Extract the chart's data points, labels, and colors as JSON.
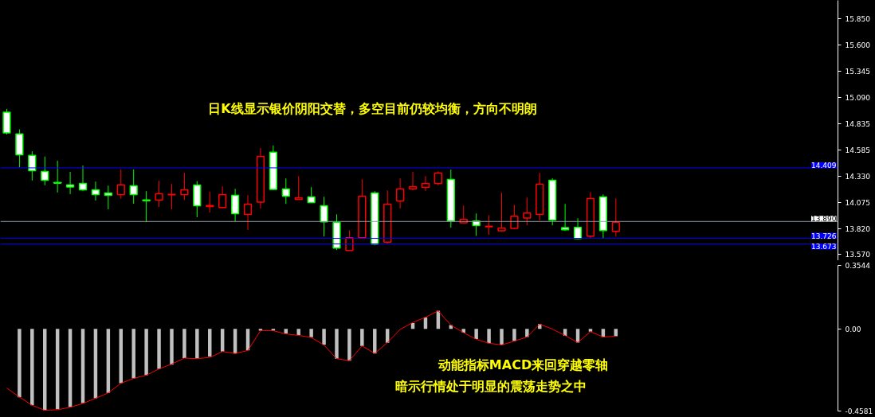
{
  "chart_data": [
    {
      "type": "candlestick",
      "categories": [
        null,
        null,
        null,
        null,
        null,
        null,
        null,
        null,
        null,
        null,
        null,
        null,
        null,
        null,
        null,
        null,
        null,
        null,
        null,
        null,
        null,
        null,
        null,
        null,
        null,
        null,
        null,
        null,
        null,
        null,
        null,
        null,
        null,
        null,
        null,
        null,
        null,
        null,
        null,
        null,
        null,
        null,
        null,
        null,
        null,
        null,
        null,
        null,
        null,
        null,
        null,
        null,
        null,
        null,
        null,
        null,
        null,
        null,
        null,
        null,
        null,
        null,
        null,
        null,
        null,
        null
      ],
      "ohlc": [
        [
          14.948,
          14.979,
          14.732,
          14.747
        ],
        [
          14.737,
          14.781,
          14.415,
          14.536
        ],
        [
          14.529,
          14.57,
          14.286,
          14.382
        ],
        [
          14.374,
          14.518,
          14.24,
          14.289
        ],
        [
          14.268,
          14.479,
          14.17,
          14.26
        ],
        [
          14.245,
          14.369,
          14.155,
          14.224
        ],
        [
          14.258,
          14.431,
          14.183,
          14.196
        ],
        [
          14.196,
          14.276,
          14.093,
          14.15
        ],
        [
          14.166,
          14.237,
          14.008,
          14.142
        ],
        [
          14.15,
          14.394,
          14.111,
          14.245
        ],
        [
          14.235,
          14.394,
          14.062,
          14.15
        ],
        [
          14.098,
          14.183,
          13.884,
          14.091
        ],
        [
          14.096,
          14.284,
          14.031,
          14.158
        ],
        [
          14.148,
          14.253,
          14.008,
          14.152
        ],
        [
          14.15,
          14.361,
          14.098,
          14.196
        ],
        [
          14.243,
          14.281,
          13.931,
          14.042
        ],
        [
          14.034,
          14.176,
          13.977,
          14.044
        ],
        [
          14.026,
          14.23,
          14.02,
          14.15
        ],
        [
          14.142,
          14.206,
          13.892,
          13.965
        ],
        [
          13.957,
          14.145,
          13.807,
          14.057
        ],
        [
          14.077,
          14.601,
          14.016,
          14.521
        ],
        [
          14.56,
          14.626,
          14.193,
          14.201
        ],
        [
          14.204,
          14.307,
          14.06,
          14.135
        ],
        [
          14.104,
          14.33,
          14.1,
          14.119
        ],
        [
          14.127,
          14.222,
          14.073,
          14.073
        ],
        [
          14.042,
          14.129,
          13.745,
          13.887
        ],
        [
          13.88,
          13.959,
          13.614,
          13.632
        ],
        [
          13.609,
          13.805,
          13.609,
          13.733
        ],
        [
          13.733,
          14.299,
          13.733,
          14.135
        ],
        [
          14.166,
          14.183,
          13.66,
          13.671
        ],
        [
          13.691,
          14.191,
          13.676,
          14.057
        ],
        [
          14.088,
          14.307,
          14.016,
          14.204
        ],
        [
          14.204,
          14.369,
          14.193,
          14.227
        ],
        [
          14.22,
          14.33,
          14.186,
          14.258
        ],
        [
          14.258,
          14.376,
          14.24,
          14.359
        ],
        [
          14.297,
          14.392,
          13.83,
          13.895
        ],
        [
          13.877,
          14.044,
          13.877,
          13.91
        ],
        [
          13.895,
          13.967,
          13.751,
          13.849
        ],
        [
          13.838,
          13.951,
          13.761,
          13.844
        ],
        [
          13.799,
          14.168,
          13.791,
          13.826
        ],
        [
          13.823,
          14.052,
          13.815,
          13.941
        ],
        [
          13.923,
          14.121,
          13.853,
          13.972
        ],
        [
          13.957,
          14.361,
          13.9,
          14.25
        ],
        [
          14.289,
          14.307,
          13.853,
          13.903
        ],
        [
          13.83,
          14.06,
          13.799,
          13.81
        ],
        [
          13.833,
          13.921,
          13.717,
          13.725
        ],
        [
          13.748,
          14.176,
          13.73,
          14.111
        ],
        [
          14.127,
          14.152,
          13.725,
          13.802
        ],
        [
          13.795,
          14.114,
          13.745,
          13.88
        ],
        null,
        null,
        null,
        null,
        null,
        null,
        null,
        null,
        null,
        null,
        null,
        null,
        null,
        null,
        null,
        null,
        null
      ],
      "ylim": [
        13.511,
        16.03
      ],
      "yticks": [
        {
          "value": 15.85,
          "label": "15.850"
        },
        {
          "value": 15.6,
          "label": "15.600"
        },
        15.345,
        {
          "value": 15.09,
          "label": "15.090"
        },
        14.835,
        14.585,
        {
          "value": 14.33,
          "label": "14.330"
        },
        14.075,
        {
          "value": 13.82,
          "label": "13.820"
        },
        {
          "value": 13.57,
          "label": "13.570"
        }
      ],
      "ref_lines": [
        {
          "axis": "y",
          "value": 14.409,
          "label": "14.409",
          "color": "#0000ff"
        },
        {
          "axis": "y",
          "value": 13.89,
          "label": "13.890",
          "color": "#8c9aa8"
        },
        {
          "axis": "y",
          "value": 13.726,
          "label": "13.726",
          "color": "#0000ff"
        },
        {
          "axis": "y",
          "value": 13.673,
          "label": "13.673",
          "color": "#0000ff"
        }
      ],
      "annotations": [
        "日K线显示银价阴阳交替，多空目前仍较均衡，方向不明朗"
      ],
      "tick_labels": "y"
    },
    {
      "type": "bar",
      "categories": [
        null,
        null,
        null,
        null,
        null,
        null,
        null,
        null,
        null,
        null,
        null,
        null,
        null,
        null,
        null,
        null,
        null,
        null,
        null,
        null,
        null,
        null,
        null,
        null,
        null,
        null,
        null,
        null,
        null,
        null,
        null,
        null,
        null,
        null,
        null,
        null,
        null,
        null,
        null,
        null,
        null,
        null,
        null,
        null,
        null,
        null,
        null,
        null,
        null,
        null,
        null,
        null,
        null,
        null,
        null,
        null,
        null,
        null,
        null,
        null,
        null,
        null,
        null,
        null,
        null,
        null
      ],
      "series": [
        {
          "type": "bar",
          "color": "#c0c0c0",
          "values": [
            null,
            -0.381,
            -0.426,
            -0.454,
            -0.448,
            -0.436,
            -0.414,
            -0.387,
            -0.357,
            -0.303,
            -0.276,
            -0.258,
            -0.223,
            -0.199,
            -0.163,
            -0.165,
            -0.154,
            -0.126,
            -0.137,
            -0.12,
            -0.01,
            -0.01,
            -0.025,
            -0.034,
            -0.046,
            -0.089,
            -0.166,
            -0.177,
            -0.095,
            -0.137,
            -0.077,
            null,
            0.032,
            0.065,
            0.101,
            0.021,
            -0.021,
            -0.056,
            -0.08,
            -0.089,
            -0.067,
            -0.045,
            0.027,
            null,
            -0.039,
            -0.076,
            -0.015,
            -0.045,
            -0.041,
            null,
            null,
            null,
            null,
            null,
            null,
            null,
            null,
            null,
            null,
            null,
            null,
            null,
            null,
            null,
            null,
            null
          ]
        },
        {
          "type": "line",
          "color": "#ff0000",
          "values": [
            -0.33,
            -0.38,
            -0.426,
            -0.454,
            -0.451,
            -0.437,
            -0.416,
            -0.387,
            -0.357,
            -0.303,
            -0.276,
            -0.258,
            -0.223,
            -0.196,
            -0.163,
            -0.166,
            -0.159,
            -0.126,
            -0.137,
            -0.12,
            -0.01,
            -0.01,
            -0.028,
            -0.036,
            -0.048,
            -0.09,
            -0.166,
            -0.177,
            -0.095,
            -0.137,
            -0.076,
            -0.003,
            0.036,
            0.065,
            0.101,
            0.021,
            -0.021,
            -0.058,
            -0.08,
            -0.089,
            -0.068,
            -0.045,
            0.027,
            -0.001,
            -0.037,
            -0.076,
            -0.015,
            -0.045,
            -0.041,
            null,
            null,
            null,
            null,
            null,
            null,
            null,
            null,
            null,
            null,
            null,
            null,
            null,
            null,
            null,
            null,
            null
          ]
        }
      ],
      "ylim": [
        -0.4581,
        0.3544
      ],
      "yticks": [
        {
          "value": 0.3544,
          "label": "0.3544"
        },
        {
          "value": 0,
          "label": "0.00"
        },
        {
          "value": -0.4581,
          "label": "-0.4581"
        }
      ],
      "annotations": [
        "动能指标MACD来回穿越零轴",
        "暗示行情处于明显的震荡走势之中"
      ],
      "tick_labels": "y"
    }
  ]
}
